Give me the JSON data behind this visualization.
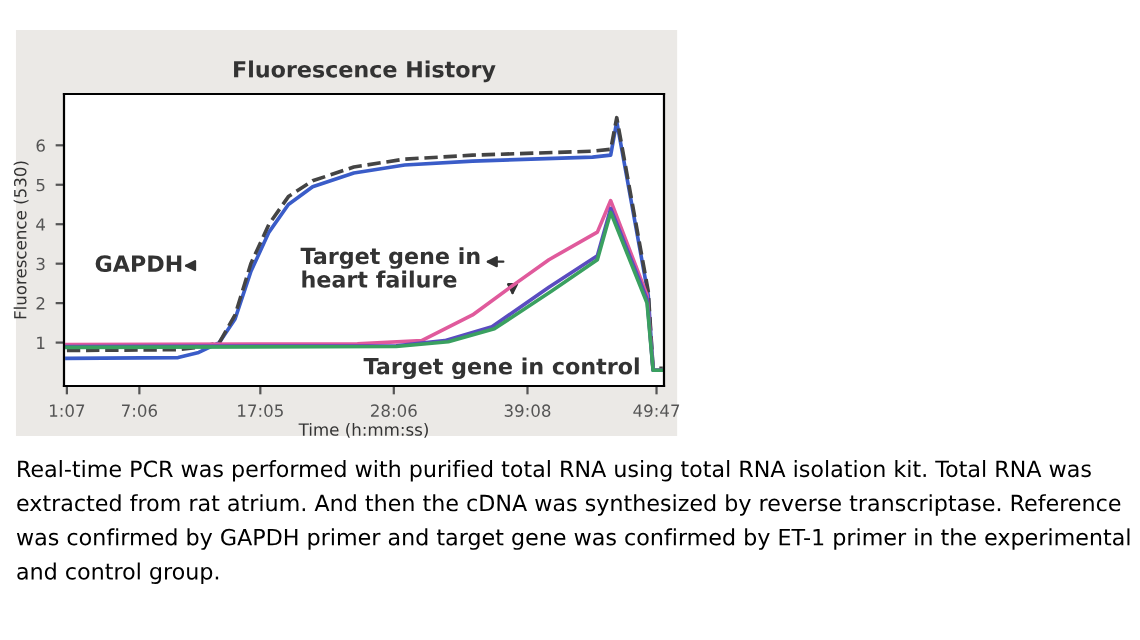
{
  "chart_data": {
    "type": "line",
    "title": "Fluorescence History",
    "xlabel": "Time (h:mm:ss)",
    "ylabel": "Fluorescence (530)",
    "xlim": [
      0.88,
      50.4
    ],
    "ylim": [
      -0.1,
      7.3
    ],
    "xticks": [
      {
        "value": 1.117,
        "label": "1:07"
      },
      {
        "value": 7.1,
        "label": "7:06"
      },
      {
        "value": 17.083,
        "label": "17:05"
      },
      {
        "value": 28.1,
        "label": "28:06"
      },
      {
        "value": 39.133,
        "label": "39:08"
      },
      {
        "value": 49.783,
        "label": "49:47"
      }
    ],
    "yticks": [
      1,
      2,
      3,
      4,
      5,
      6
    ],
    "grid": false,
    "legend": false,
    "series": [
      {
        "color": "#3a5cc8",
        "x": [
          1.12,
          10.3,
          12.0,
          13.7,
          15.0,
          16.3,
          17.8,
          19.4,
          21.4,
          24.8,
          29.0,
          34.6,
          44.5,
          46.0,
          46.5,
          49.1,
          49.5,
          50.3
        ],
        "values": [
          0.6,
          0.62,
          0.75,
          1.0,
          1.6,
          2.8,
          3.8,
          4.5,
          4.95,
          5.3,
          5.5,
          5.6,
          5.7,
          5.75,
          6.6,
          2.2,
          0.3,
          0.3
        ]
      },
      {
        "color": "#444444",
        "line_style": "dashed",
        "x": [
          1.12,
          10.3,
          12.0,
          13.7,
          15.0,
          16.3,
          17.8,
          19.4,
          21.4,
          24.8,
          29.0,
          34.6,
          44.5,
          46.0,
          46.5,
          49.1,
          49.5,
          50.3
        ],
        "values": [
          0.8,
          0.82,
          0.88,
          1.0,
          1.7,
          3.0,
          4.0,
          4.7,
          5.1,
          5.45,
          5.65,
          5.75,
          5.85,
          5.9,
          6.7,
          2.3,
          0.35,
          0.35
        ]
      },
      {
        "color": "#e05a9c",
        "x": [
          1.12,
          25.1,
          30.4,
          34.6,
          37.7,
          40.9,
          44.9,
          46.0,
          49.0,
          49.5,
          50.3
        ],
        "values": [
          0.95,
          0.97,
          1.05,
          1.7,
          2.4,
          3.1,
          3.8,
          4.6,
          2.2,
          0.3,
          0.3
        ]
      },
      {
        "color": "#5a4cc0",
        "x": [
          1.12,
          28.3,
          32.3,
          36.2,
          40.9,
          44.9,
          46.0,
          49.0,
          49.5,
          50.3
        ],
        "values": [
          0.9,
          0.92,
          1.05,
          1.4,
          2.4,
          3.2,
          4.4,
          2.1,
          0.3,
          0.3
        ]
      },
      {
        "color": "#3aa060",
        "x": [
          1.12,
          28.3,
          32.6,
          36.4,
          41.1,
          44.9,
          46.0,
          49.0,
          49.5,
          50.3
        ],
        "values": [
          0.88,
          0.9,
          1.02,
          1.35,
          2.3,
          3.1,
          4.3,
          2.0,
          0.3,
          0.3
        ]
      }
    ],
    "annotations": [
      "GAPDH",
      "Target gene in heart failure",
      "Target gene in control",
      "Real-time PCR was performed with purified total RNA using total RNA isolation kit. Total RNA was extracted from rat atrium. And then the cDNA was synthesized by reverse transcriptase. Reference was confirmed by GAPDH primer and target gene was confirmed by ET-1 primer in the experimental and control group."
    ]
  }
}
